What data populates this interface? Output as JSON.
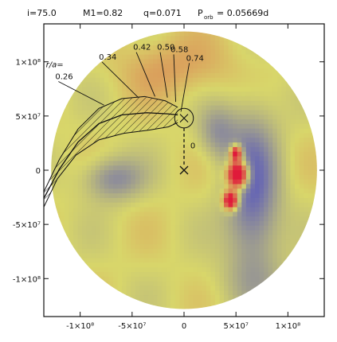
{
  "chart_data": {
    "type": "heatmap",
    "header": {
      "inclination": "i=75.0",
      "m1": "M1=0.82",
      "q": "q=0.071",
      "p_orb_label": "P",
      "p_orb_sub": "orb",
      "p_orb_value": "= 0.05669d"
    },
    "x_ticks": [
      {
        "v": -100000000,
        "label": "-1×10⁸"
      },
      {
        "v": -50000000,
        "label": "-5×10⁷"
      },
      {
        "v": 0,
        "label": "0"
      },
      {
        "v": 50000000,
        "label": "5×10⁷"
      },
      {
        "v": 100000000,
        "label": "1×10⁸"
      }
    ],
    "y_ticks": [
      {
        "v": 100000000,
        "label": "1×10⁸"
      },
      {
        "v": 50000000,
        "label": "5×10⁷"
      },
      {
        "v": 0,
        "label": "0"
      },
      {
        "v": -50000000,
        "label": "-5×10⁷"
      },
      {
        "v": -100000000,
        "label": "-1×10⁸"
      }
    ],
    "xlim": [
      -135000000,
      135000000
    ],
    "ylim": [
      -135000000,
      135000000
    ],
    "disc_radius": 128000000,
    "colormap": {
      "low": "#4c4cc4",
      "mid": "#d8d66a",
      "high": "#e01a3a"
    },
    "blobs": [
      {
        "x": -68000000,
        "y": -8000000,
        "sx": 20000000,
        "sy": 14000000,
        "a": -0.55
      },
      {
        "x": 66000000,
        "y": -20000000,
        "sx": 18000000,
        "sy": 52000000,
        "a": -0.8
      },
      {
        "x": 32000000,
        "y": 35000000,
        "sx": 13000000,
        "sy": 17000000,
        "a": -0.45
      },
      {
        "x": -5000000,
        "y": 95000000,
        "sx": 40000000,
        "sy": 20000000,
        "a": 0.28
      },
      {
        "x": 75000000,
        "y": -105000000,
        "sx": 35000000,
        "sy": 18000000,
        "a": -0.15
      }
    ],
    "hot": [
      {
        "x": 52000000,
        "y": -4000000,
        "sx": 7000000,
        "sy": 9000000,
        "a": 1.0
      },
      {
        "x": 45000000,
        "y": -28000000,
        "sx": 5000000,
        "sy": 6000000,
        "a": 0.65
      },
      {
        "x": 50000000,
        "y": 16000000,
        "sx": 4000000,
        "sy": 5000000,
        "a": 0.5
      }
    ],
    "primary_star": {
      "x": 0,
      "y": 0
    },
    "secondary": {
      "x": 0,
      "y": 48000000,
      "r": 9000000
    },
    "phase_label": "0",
    "phase_label_pos": {
      "x": 6000000,
      "y": 20000000
    },
    "r_over_a_label": "r/a=",
    "stream_labels": [
      {
        "text": "0.26",
        "x": -124000000,
        "y": 84000000,
        "tx": -77000000,
        "ty": 60000000
      },
      {
        "text": "0.34",
        "x": -82000000,
        "y": 102000000,
        "tx": -44000000,
        "ty": 67000000
      },
      {
        "text": "0.42",
        "x": -49000000,
        "y": 111000000,
        "tx": -28000000,
        "ty": 68000000
      },
      {
        "text": "0.50",
        "x": -26000000,
        "y": 111000000,
        "tx": -16000000,
        "ty": 67000000
      },
      {
        "text": "0.58",
        "x": -13000000,
        "y": 109000000,
        "tx": -8000000,
        "ty": 63000000
      },
      {
        "text": "0.74",
        "x": 2000000,
        "y": 101000000,
        "tx": -3000000,
        "ty": 54000000
      }
    ],
    "stream_upper": [
      [
        -135000000,
        -20000000
      ],
      [
        -120000000,
        10000000
      ],
      [
        -102000000,
        38000000
      ],
      [
        -82000000,
        57000000
      ],
      [
        -60000000,
        66000000
      ],
      [
        -38000000,
        68000000
      ],
      [
        -18000000,
        64000000
      ],
      [
        -6000000,
        58000000
      ]
    ],
    "stream_lower": [
      [
        -135000000,
        -34000000
      ],
      [
        -122000000,
        -8000000
      ],
      [
        -104000000,
        14000000
      ],
      [
        -82000000,
        28000000
      ],
      [
        -58000000,
        34000000
      ],
      [
        -34000000,
        37000000
      ],
      [
        -15000000,
        40000000
      ],
      [
        -6000000,
        44000000
      ]
    ],
    "stream_axis": [
      [
        -135000000,
        -26000000
      ],
      [
        -120000000,
        1000000
      ],
      [
        -102000000,
        26000000
      ],
      [
        -82000000,
        43000000
      ],
      [
        -60000000,
        51000000
      ],
      [
        -36000000,
        53000000
      ],
      [
        -16000000,
        52000000
      ],
      [
        -6000000,
        51000000
      ]
    ]
  }
}
